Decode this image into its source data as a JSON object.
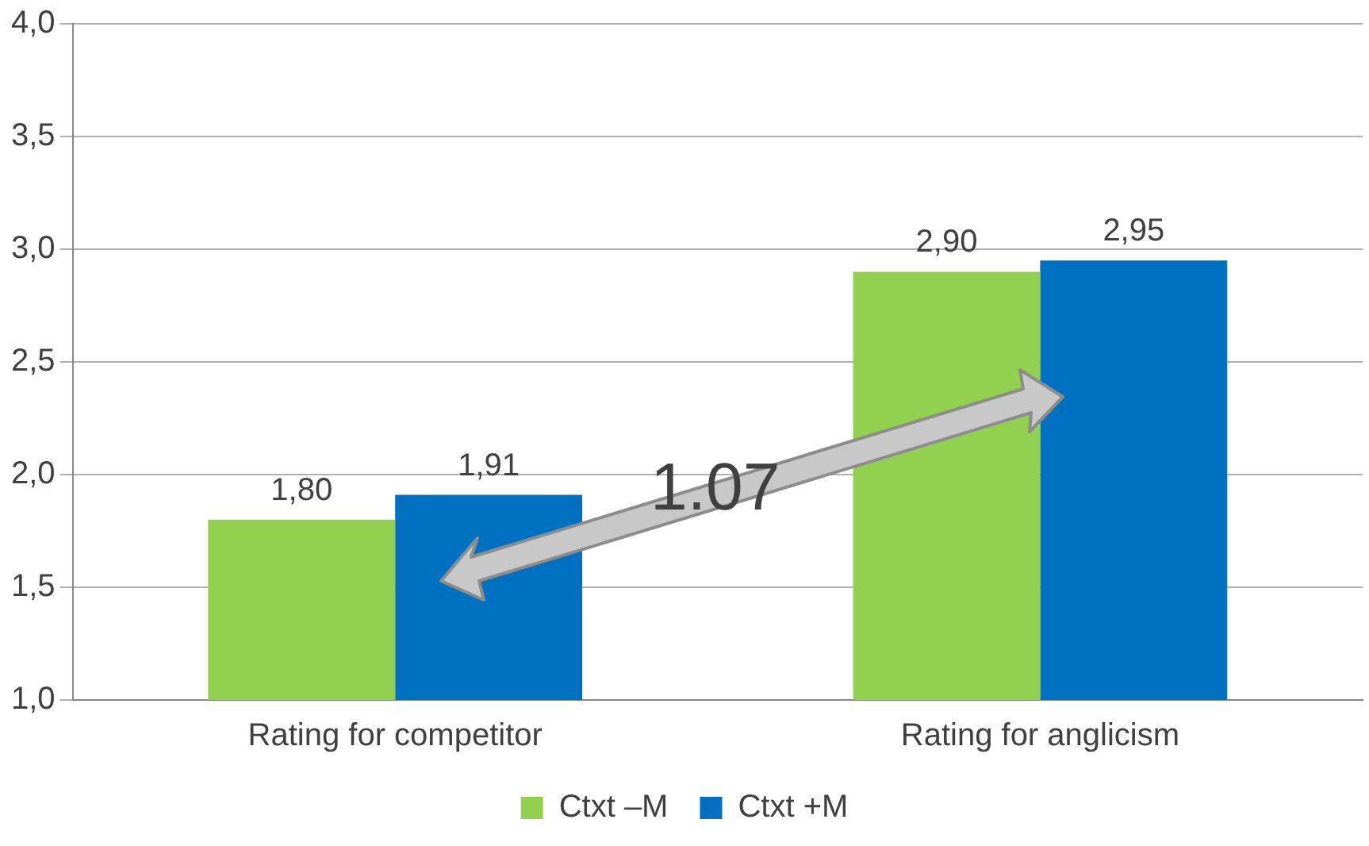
{
  "chart_data": {
    "type": "bar",
    "categories": [
      "Rating for competitor",
      "Rating for anglicism"
    ],
    "series": [
      {
        "name": "Ctxt –M",
        "color": "#92d050",
        "values": [
          1.8,
          2.9
        ],
        "value_labels": [
          "1,80",
          "2,90"
        ]
      },
      {
        "name": "Ctxt +M",
        "color": "#0070c0",
        "values": [
          1.91,
          2.95
        ],
        "value_labels": [
          "1,91",
          "2,95"
        ]
      }
    ],
    "ylim": [
      1,
      4
    ],
    "yticks": [
      {
        "value": 1,
        "label": "1,0"
      },
      {
        "value": 1.5,
        "label": "1,5"
      },
      {
        "value": 2,
        "label": "2,0"
      },
      {
        "value": 2.5,
        "label": "2,5"
      },
      {
        "value": 3,
        "label": "3,0"
      },
      {
        "value": 3.5,
        "label": "3,5"
      },
      {
        "value": 4,
        "label": "4,0"
      }
    ],
    "grid": "y",
    "legend": "bottom",
    "annotations": [
      "1.07"
    ]
  }
}
